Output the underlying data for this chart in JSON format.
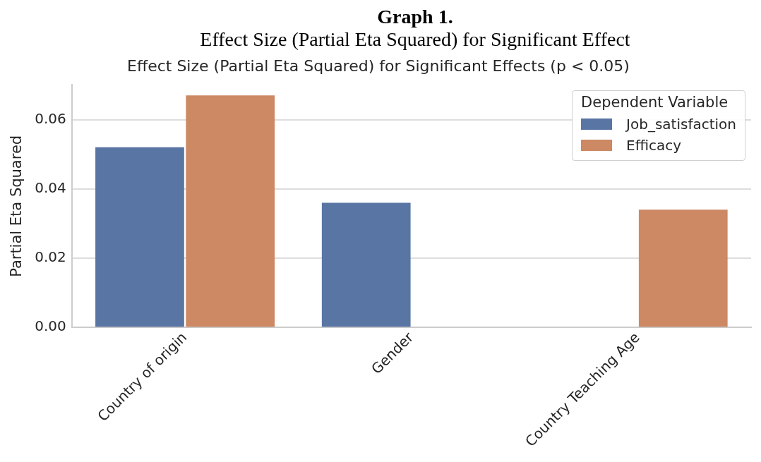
{
  "chart_data": {
    "type": "bar",
    "annotations": [
      "Graph 1.",
      "Effect Size (Partial Eta Squared) for Significant Effect"
    ],
    "title": "Effect Size (Partial Eta Squared) for Significant Effects (p < 0.05)",
    "ylabel": "Partial Eta Squared",
    "categories": [
      "Country of origin",
      "Gender",
      "Country Teaching Age"
    ],
    "series": [
      {
        "name": "Job_satisfaction",
        "color": "#5975a4",
        "values": [
          0.052,
          0.036,
          null
        ]
      },
      {
        "name": "Efficacy",
        "color": "#cc8963",
        "values": [
          0.067,
          null,
          0.034
        ]
      }
    ],
    "ylim": [
      0,
      0.07
    ],
    "yticks": [
      {
        "value": 0,
        "label": "0.00"
      },
      {
        "value": 0.02,
        "label": "0.02"
      },
      {
        "value": 0.04,
        "label": "0.04"
      },
      {
        "value": 0.06,
        "label": "0.06"
      }
    ],
    "grid": "y",
    "legend": "top right",
    "legend_title": "Dependent Variable"
  }
}
